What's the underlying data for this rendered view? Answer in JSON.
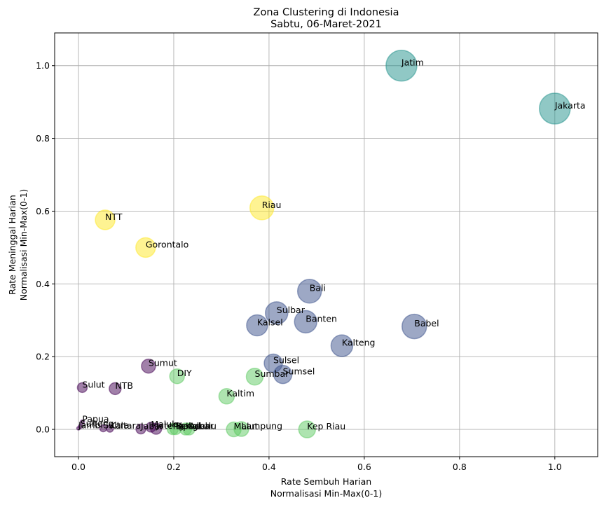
{
  "chart_data": {
    "type": "scatter",
    "title": "Zona Clustering di Indonesia",
    "subtitle": "Sabtu, 06-Maret-2021",
    "xlabel_line1": "Rate Sembuh Harian",
    "xlabel_line2": "Normalisasi Min-Max(0-1)",
    "ylabel_line1": "Rate Meninggal Harian",
    "ylabel_line2": "Normalisasi Min-Max(0-1)",
    "xlim": [
      -0.05,
      1.09
    ],
    "ylim": [
      -0.075,
      1.09
    ],
    "xticks": [
      0.0,
      0.2,
      0.4,
      0.6,
      0.8,
      1.0
    ],
    "yticks": [
      0.0,
      0.2,
      0.4,
      0.6,
      0.8,
      1.0
    ],
    "xtick_labels": [
      "0.0",
      "0.2",
      "0.4",
      "0.6",
      "0.8",
      "1.0"
    ],
    "ytick_labels": [
      "0.0",
      "0.2",
      "0.4",
      "0.6",
      "0.8",
      "1.0"
    ],
    "grid": true,
    "cluster_colors": {
      "0": "#440154",
      "1": "#3b528b",
      "2": "#21918c",
      "3": "#5ec962",
      "4": "#fde725"
    },
    "points": [
      {
        "label": "Jatim",
        "x": 0.678,
        "y": 1.0,
        "cluster": 2,
        "size": 44
      },
      {
        "label": "Jakarta",
        "x": 1.0,
        "y": 0.882,
        "cluster": 2,
        "size": 44
      },
      {
        "label": "Riau",
        "x": 0.385,
        "y": 0.609,
        "cluster": 4,
        "size": 34
      },
      {
        "label": "NTT",
        "x": 0.056,
        "y": 0.576,
        "cluster": 4,
        "size": 28
      },
      {
        "label": "Gorontalo",
        "x": 0.141,
        "y": 0.5,
        "cluster": 4,
        "size": 28
      },
      {
        "label": "Bali",
        "x": 0.485,
        "y": 0.38,
        "cluster": 1,
        "size": 34
      },
      {
        "label": "Sulbar",
        "x": 0.416,
        "y": 0.32,
        "cluster": 1,
        "size": 32
      },
      {
        "label": "Kalsel",
        "x": 0.375,
        "y": 0.286,
        "cluster": 1,
        "size": 30
      },
      {
        "label": "Banten",
        "x": 0.477,
        "y": 0.296,
        "cluster": 1,
        "size": 32
      },
      {
        "label": "Babel",
        "x": 0.705,
        "y": 0.283,
        "cluster": 1,
        "size": 35
      },
      {
        "label": "Kalteng",
        "x": 0.553,
        "y": 0.23,
        "cluster": 1,
        "size": 31
      },
      {
        "label": "Sulsel",
        "x": 0.409,
        "y": 0.182,
        "cluster": 1,
        "size": 26
      },
      {
        "label": "Sumsel",
        "x": 0.429,
        "y": 0.151,
        "cluster": 1,
        "size": 26
      },
      {
        "label": "Sumut",
        "x": 0.147,
        "y": 0.174,
        "cluster": 0,
        "size": 20
      },
      {
        "label": "DIY",
        "x": 0.207,
        "y": 0.146,
        "cluster": 3,
        "size": 21
      },
      {
        "label": "Sumbar",
        "x": 0.37,
        "y": 0.145,
        "cluster": 3,
        "size": 24
      },
      {
        "label": "Kaltim",
        "x": 0.311,
        "y": 0.091,
        "cluster": 3,
        "size": 22
      },
      {
        "label": "Sulut",
        "x": 0.008,
        "y": 0.115,
        "cluster": 0,
        "size": 14
      },
      {
        "label": "NTB",
        "x": 0.077,
        "y": 0.112,
        "cluster": 0,
        "size": 17
      },
      {
        "label": "Papua",
        "x": 0.008,
        "y": 0.02,
        "cluster": 0,
        "size": 6
      },
      {
        "label": "Sulteng",
        "x": 0.004,
        "y": 0.008,
        "cluster": 0,
        "size": 6
      },
      {
        "label": "Jambi",
        "x": 0.0,
        "y": 0.003,
        "cluster": 0,
        "size": 5
      },
      {
        "label": "Sultra",
        "x": 0.052,
        "y": 0.003,
        "cluster": 0,
        "size": 10
      },
      {
        "label": "Kaltara",
        "x": 0.066,
        "y": 0.002,
        "cluster": 0,
        "size": 10
      },
      {
        "label": "Jabar",
        "x": 0.131,
        "y": 0.001,
        "cluster": 0,
        "size": 14
      },
      {
        "label": "Maluku",
        "x": 0.152,
        "y": 0.006,
        "cluster": 0,
        "size": 14
      },
      {
        "label": "Jateng",
        "x": 0.163,
        "y": 0.002,
        "cluster": 0,
        "size": 16
      },
      {
        "label": "Papbar",
        "x": 0.198,
        "y": 0.001,
        "cluster": 3,
        "size": 16
      },
      {
        "label": "Bengkulu",
        "x": 0.204,
        "y": 0.001,
        "cluster": 3,
        "size": 16
      },
      {
        "label": "Kalbar",
        "x": 0.225,
        "y": 0.001,
        "cluster": 3,
        "size": 17
      },
      {
        "label": "Aceh",
        "x": 0.232,
        "y": 0.001,
        "cluster": 3,
        "size": 17
      },
      {
        "label": "Malut",
        "x": 0.326,
        "y": 0.0,
        "cluster": 3,
        "size": 21
      },
      {
        "label": "Lampung",
        "x": 0.342,
        "y": 0.001,
        "cluster": 3,
        "size": 21
      },
      {
        "label": "Kep Riau",
        "x": 0.48,
        "y": 0.0,
        "cluster": 3,
        "size": 24
      }
    ]
  }
}
